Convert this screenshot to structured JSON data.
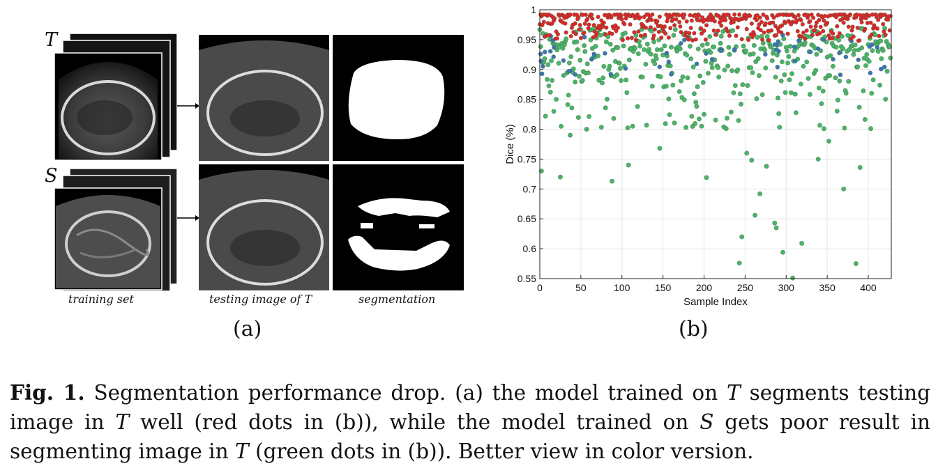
{
  "panel_a": {
    "set_labels": [
      "T",
      "S"
    ],
    "captions": [
      "training set",
      "testing image of T",
      "segmentation"
    ],
    "label": "(a)"
  },
  "panel_b": {
    "label": "(b)"
  },
  "chart_data": {
    "type": "scatter",
    "title": "",
    "xlabel": "Sample Index",
    "ylabel": "Dice (%)",
    "xlim": [
      0,
      428
    ],
    "ylim": [
      0.55,
      1
    ],
    "xticks": [
      0,
      50,
      100,
      150,
      200,
      250,
      300,
      350,
      400
    ],
    "yticks": [
      0.55,
      0.6,
      0.65,
      0.7,
      0.75,
      0.8,
      0.85,
      0.9,
      0.95,
      1
    ],
    "ytick_labels": [
      "0.55",
      "0.6",
      "0.65",
      "0.7",
      "0.75",
      "0.8",
      "0.85",
      "0.9",
      "0.95",
      "1"
    ],
    "grid": true,
    "series": [
      {
        "color": "#e0262b",
        "generator": {
          "n": 428,
          "min": 0.948,
          "max": 0.992
        }
      },
      {
        "color": "#4cb36a",
        "generator": {
          "n": 428,
          "outliers": [
            [
              2,
              0.73
            ],
            [
              25,
              0.72
            ],
            [
              37,
              0.79
            ],
            [
              57,
              0.8
            ],
            [
              88,
              0.713
            ],
            [
              108,
              0.74
            ],
            [
              113,
              0.805
            ],
            [
              146,
              0.768
            ],
            [
              178,
              0.803
            ],
            [
              203,
              0.719
            ],
            [
              243,
              0.576
            ],
            [
              246,
              0.62
            ],
            [
              252,
              0.76
            ],
            [
              258,
              0.748
            ],
            [
              262,
              0.656
            ],
            [
              268,
              0.692
            ],
            [
              276,
              0.738
            ],
            [
              286,
              0.643
            ],
            [
              288,
              0.635
            ],
            [
              296,
              0.594
            ],
            [
              308,
              0.551
            ],
            [
              319,
              0.609
            ],
            [
              339,
              0.75
            ],
            [
              352,
              0.78
            ],
            [
              370,
              0.7
            ],
            [
              385,
              0.575
            ],
            [
              390,
              0.736
            ]
          ]
        }
      },
      {
        "color": "#3d74b8",
        "generator": {
          "n": 60,
          "min": 0.89,
          "max": 0.96
        }
      }
    ]
  },
  "caption": {
    "fig": "Fig. 1.",
    "t1": " Segmentation performance drop. (a) the model trained on ",
    "v1": "T",
    "t2": " segments testing image in ",
    "v2": "T",
    "t3": " well (red dots in (b)), while the model trained on ",
    "v3": "S",
    "t4": " gets poor result in segmenting image in ",
    "v4": "T",
    "t5": " (green dots in (b)). Better view in color version."
  }
}
